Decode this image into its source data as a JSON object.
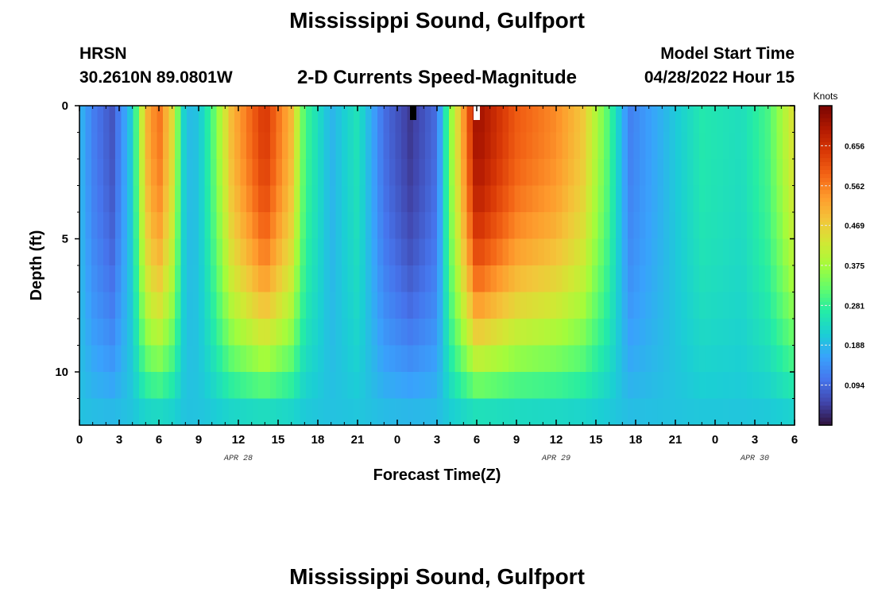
{
  "page": {
    "title": "Mississippi Sound, Gulfport",
    "footer_title": "Mississippi Sound, Gulfport",
    "station_id": "HRSN",
    "coordinates": "30.2610N  89.0801W",
    "subtitle": "2-D Currents Speed-Magnitude",
    "model_start_label": "Model Start Time",
    "model_start_value": "04/28/2022 Hour 15"
  },
  "chart_data": {
    "type": "heatmap",
    "title": "Mississippi Sound, Gulfport",
    "subtitle": "2-D Currents Speed-Magnitude",
    "xlabel": "Forecast Time(Z)",
    "ylabel": "Depth (ft)",
    "x_tick_labels": [
      "0",
      "3",
      "6",
      "9",
      "12",
      "15",
      "18",
      "21",
      "0",
      "3",
      "6",
      "9",
      "12",
      "15",
      "18",
      "21",
      "0",
      "3",
      "6"
    ],
    "x_range_hours": [
      0,
      54
    ],
    "date_labels": [
      {
        "text": "APR 28",
        "hour": 12
      },
      {
        "text": "APR 29",
        "hour": 36
      },
      {
        "text": "APR 30",
        "hour": 51
      }
    ],
    "y_tick_labels": [
      "0",
      "5",
      "10"
    ],
    "y_range_ft": [
      0,
      12
    ],
    "y_inverted": true,
    "colorbar": {
      "unit": "Knots",
      "range": [
        0,
        0.75
      ],
      "tick_labels": [
        "0.656",
        "0.562",
        "0.469",
        "0.375",
        "0.281",
        "0.188",
        "0.094"
      ],
      "tick_values": [
        0.656,
        0.562,
        0.469,
        0.375,
        0.281,
        0.188,
        0.094
      ],
      "colormap": [
        "#30123b",
        "#4145ab",
        "#4675ed",
        "#39a2fc",
        "#1bcfd4",
        "#24eca6",
        "#61fc6c",
        "#a4fc3b",
        "#d1e834",
        "#f3c63a",
        "#fe9b2d",
        "#f36315",
        "#d93806",
        "#b11901",
        "#7a0402"
      ]
    },
    "speed_profile_surface_knots": [
      {
        "hour": 0,
        "speed": 0.19
      },
      {
        "hour": 1,
        "speed": 0.12
      },
      {
        "hour": 2.5,
        "speed": 0.07
      },
      {
        "hour": 4,
        "speed": 0.22
      },
      {
        "hour": 5,
        "speed": 0.5
      },
      {
        "hour": 6,
        "speed": 0.58
      },
      {
        "hour": 7,
        "speed": 0.45
      },
      {
        "hour": 8,
        "speed": 0.19
      },
      {
        "hour": 9,
        "speed": 0.2
      },
      {
        "hour": 10,
        "speed": 0.3
      },
      {
        "hour": 11.5,
        "speed": 0.5
      },
      {
        "hour": 14,
        "speed": 0.65
      },
      {
        "hour": 16,
        "speed": 0.5
      },
      {
        "hour": 17,
        "speed": 0.3
      },
      {
        "hour": 19,
        "speed": 0.18
      },
      {
        "hour": 21,
        "speed": 0.25
      },
      {
        "hour": 23,
        "speed": 0.1
      },
      {
        "hour": 25,
        "speed": 0.04
      },
      {
        "hour": 27,
        "speed": 0.1
      },
      {
        "hour": 28,
        "speed": 0.35
      },
      {
        "hour": 30,
        "speed": 0.72
      },
      {
        "hour": 33,
        "speed": 0.6
      },
      {
        "hour": 36,
        "speed": 0.55
      },
      {
        "hour": 38,
        "speed": 0.48
      },
      {
        "hour": 40,
        "speed": 0.3
      },
      {
        "hour": 41.5,
        "speed": 0.12
      },
      {
        "hour": 44,
        "speed": 0.18
      },
      {
        "hour": 47,
        "speed": 0.26
      },
      {
        "hour": 50,
        "speed": 0.24
      },
      {
        "hour": 52,
        "speed": 0.3
      },
      {
        "hour": 54,
        "speed": 0.45
      }
    ],
    "bottom_layer_speed_knots": 0.2,
    "markers": [
      {
        "hour": 25.2,
        "color": "#000000"
      },
      {
        "hour": 30.0,
        "color": "#ffffff"
      }
    ]
  }
}
